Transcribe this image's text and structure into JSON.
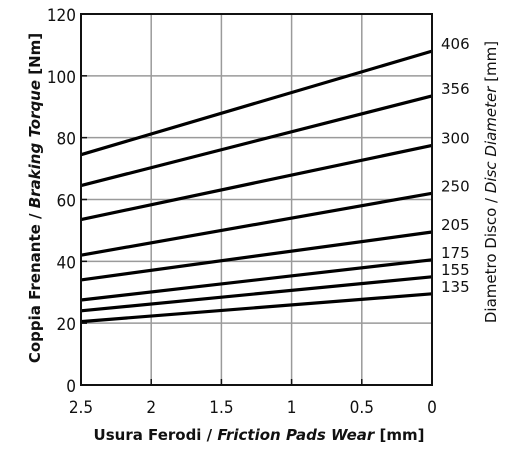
{
  "chart_data": {
    "type": "line",
    "x_ticks": [
      2.5,
      2,
      1.5,
      1,
      0.5,
      0
    ],
    "x_tick_labels": [
      "2.5",
      "2",
      "1.5",
      "1",
      "0.5",
      "0"
    ],
    "xlim": [
      2.5,
      0
    ],
    "y_ticks": [
      0,
      20,
      40,
      60,
      80,
      100,
      120
    ],
    "y_tick_labels": [
      "0",
      "20",
      "40",
      "60",
      "80",
      "100",
      "120"
    ],
    "ylim": [
      0,
      120
    ],
    "grid": true,
    "xlabel": {
      "plain": "Usura Ferodi / ",
      "emph": "Friction Pads Wear",
      "unit": " [mm]"
    },
    "ylabel": {
      "plain": "Coppia Frenante / ",
      "emph": "Braking Torque",
      "unit": " [Nm]"
    },
    "y2label": {
      "plain": "Diametro Disco / ",
      "emph": "Disc Diameter",
      "unit": " [mm]"
    },
    "series": [
      {
        "name": "406",
        "x": [
          2.5,
          0
        ],
        "y": [
          74.5,
          108
        ]
      },
      {
        "name": "356",
        "x": [
          2.5,
          0
        ],
        "y": [
          64.5,
          93.5
        ]
      },
      {
        "name": "300",
        "x": [
          2.5,
          0
        ],
        "y": [
          53.5,
          77.5
        ]
      },
      {
        "name": "250",
        "x": [
          2.5,
          0
        ],
        "y": [
          42,
          62
        ]
      },
      {
        "name": "205",
        "x": [
          2.5,
          0
        ],
        "y": [
          34,
          49.5
        ]
      },
      {
        "name": "175",
        "x": [
          2.5,
          0
        ],
        "y": [
          27.5,
          40.5
        ]
      },
      {
        "name": "155",
        "x": [
          2.5,
          0
        ],
        "y": [
          24,
          35
        ]
      },
      {
        "name": "135",
        "x": [
          2.5,
          0
        ],
        "y": [
          20.5,
          29.5
        ]
      }
    ]
  }
}
